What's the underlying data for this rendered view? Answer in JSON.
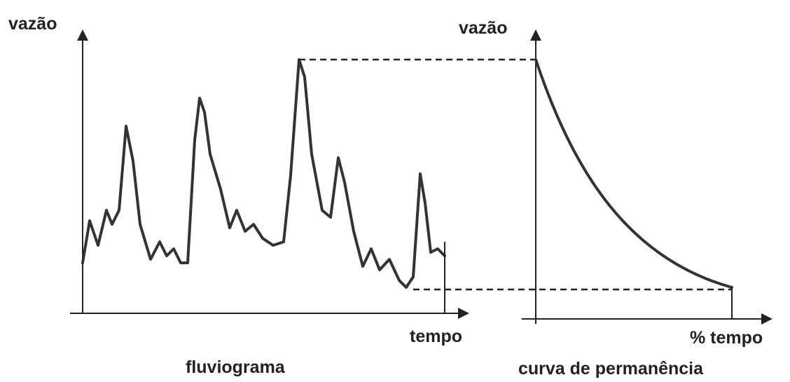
{
  "fluviograma": {
    "y_label": "vazão",
    "x_label": "tempo",
    "caption": "fluviograma"
  },
  "curva_de_permanencia": {
    "y_label": "vazão",
    "x_label": "% tempo",
    "caption": "curva de permanência"
  }
}
